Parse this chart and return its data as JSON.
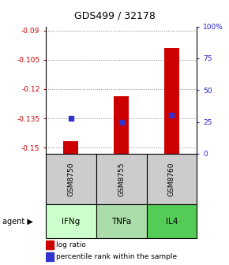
{
  "title": "GDS499 / 32178",
  "categories": [
    "IFNg",
    "TNFa",
    "IL4"
  ],
  "gsm_labels": [
    "GSM8750",
    "GSM8755",
    "GSM8760"
  ],
  "log_ratios": [
    -0.1465,
    -0.1235,
    -0.099
  ],
  "percentile_ranks": [
    28,
    25,
    30
  ],
  "ylim_left": [
    -0.153,
    -0.088
  ],
  "ylim_right": [
    0,
    100
  ],
  "yticks_left": [
    -0.15,
    -0.135,
    -0.12,
    -0.105,
    -0.09
  ],
  "ytick_labels_left": [
    "-0.15",
    "-0.135",
    "-0.12",
    "-0.105",
    "-0.09"
  ],
  "yticks_right": [
    0,
    25,
    50,
    75,
    100
  ],
  "ytick_labels_right": [
    "0",
    "25",
    "50",
    "75",
    "100%"
  ],
  "bar_color": "#cc0000",
  "dot_color": "#3333cc",
  "agent_colors": [
    "#ccffcc",
    "#aaddaa",
    "#55cc55"
  ],
  "gsm_bg_color": "#cccccc",
  "grid_color": "#888888",
  "left_axis_color": "#cc0000",
  "right_axis_color": "#2222cc",
  "bar_width": 0.3
}
